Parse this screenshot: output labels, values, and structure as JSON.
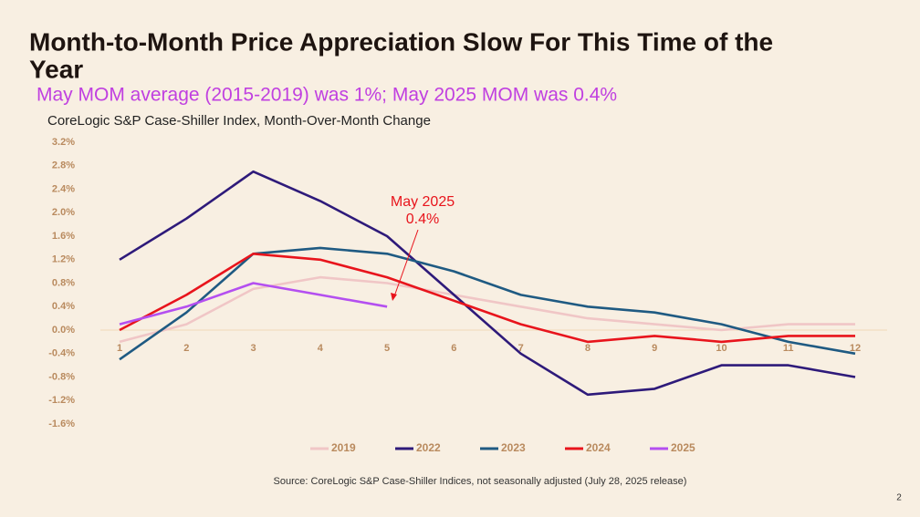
{
  "title": "Month-to-Month Price Appreciation Slow For This Time of the Year",
  "subtitle": "May MOM average (2015-2019) was 1%; May 2025 MOM was 0.4%",
  "source": "Source: CoreLogic S&P Case-Shiller Indices, not seasonally adjusted (July 28, 2025 release)",
  "page_number": "2",
  "chart_data": {
    "type": "line",
    "title": "CoreLogic S&P Case-Shiller Index, Month-Over-Month Change",
    "categories": [
      "1",
      "2",
      "3",
      "4",
      "5",
      "6",
      "7",
      "8",
      "9",
      "10",
      "11",
      "12"
    ],
    "series": [
      {
        "name": "2019",
        "color": "#f0c6c6",
        "values": [
          -0.2,
          0.1,
          0.7,
          0.9,
          0.8,
          0.6,
          0.4,
          0.2,
          0.1,
          0.0,
          0.1,
          0.1
        ]
      },
      {
        "name": "2022",
        "color": "#2e1a7a",
        "values": [
          1.2,
          1.9,
          2.7,
          2.2,
          1.6,
          0.6,
          -0.4,
          -1.1,
          -1.0,
          -0.6,
          -0.6,
          -0.8
        ]
      },
      {
        "name": "2023",
        "color": "#1f5a82",
        "values": [
          -0.5,
          0.3,
          1.3,
          1.4,
          1.3,
          1.0,
          0.6,
          0.4,
          0.3,
          0.1,
          -0.2,
          -0.4
        ]
      },
      {
        "name": "2024",
        "color": "#e8141c",
        "values": [
          0.0,
          0.6,
          1.3,
          1.2,
          0.9,
          0.5,
          0.1,
          -0.2,
          -0.1,
          -0.2,
          -0.1,
          -0.1
        ]
      },
      {
        "name": "2025",
        "color": "#b44ff0",
        "values": [
          0.1,
          0.4,
          0.8,
          0.6,
          0.4,
          null,
          null,
          null,
          null,
          null,
          null,
          null
        ]
      }
    ],
    "ylim": [
      -1.6,
      3.2
    ],
    "yticks": [
      {
        "value": -1.6,
        "label": "-1.6%"
      },
      {
        "value": -1.2,
        "label": "-1.2%"
      },
      {
        "value": -0.8,
        "label": "-0.8%"
      },
      {
        "value": -0.4,
        "label": "-0.4%"
      },
      {
        "value": 0,
        "label": "0.0%"
      },
      {
        "value": 0.4,
        "label": "0.4%"
      },
      {
        "value": 0.8,
        "label": "0.8%"
      },
      {
        "value": 1.2,
        "label": "1.2%"
      },
      {
        "value": 1.6,
        "label": "1.6%"
      },
      {
        "value": 2.0,
        "label": "2.0%"
      },
      {
        "value": 2.4,
        "label": "2.4%"
      },
      {
        "value": 2.8,
        "label": "2.8%"
      },
      {
        "value": 3.2,
        "label": "3.2%"
      }
    ],
    "annotation": {
      "lines": [
        "May 2025",
        "0.4%"
      ],
      "color": "#e8141c"
    },
    "legend": "bottom"
  }
}
